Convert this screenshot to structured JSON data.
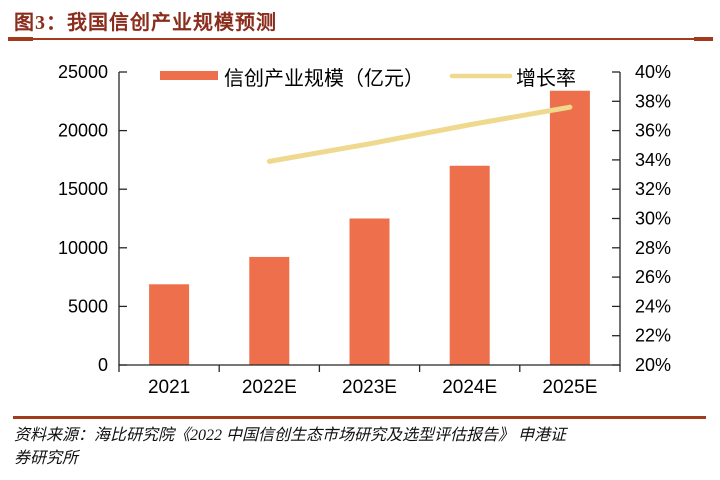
{
  "header": {
    "title": "图3：我国信创产业规模预测"
  },
  "source": {
    "lines": [
      "资料来源：海比研究院《2022 中国信创生态市场研究及选型评估报告》 申港证",
      "券研究所"
    ]
  },
  "colors": {
    "bar": "#ED6F4B",
    "growth_line": "#EFD98F",
    "title": "#8B2D1D",
    "rule": "#A23B1E",
    "axis": "#262626",
    "label": "#000000"
  },
  "chart_data": {
    "type": "bar-line-combo",
    "title": "我国信创产业规模预测",
    "categories": [
      "2021",
      "2022E",
      "2023E",
      "2024E",
      "2025E"
    ],
    "series": [
      {
        "name": "信创产业规模（亿元）",
        "type": "bar",
        "axis": "left",
        "values": [
          6887,
          9220,
          12500,
          17000,
          23400
        ]
      },
      {
        "name": "增长率",
        "type": "line",
        "axis": "right",
        "unit": "%",
        "values": [
          null,
          33.9,
          35.1,
          36.4,
          37.6
        ]
      }
    ],
    "left_axis": {
      "min": 0,
      "max": 25000,
      "step": 5000,
      "tick_labels": [
        "0",
        "5000",
        "10000",
        "15000",
        "20000",
        "25000"
      ]
    },
    "right_axis": {
      "min": 20,
      "max": 40,
      "step": 2,
      "tick_labels": [
        "20%",
        "22%",
        "24%",
        "26%",
        "28%",
        "30%",
        "32%",
        "34%",
        "36%",
        "38%",
        "40%"
      ]
    },
    "legend_position": "top-inside",
    "grid": false
  }
}
